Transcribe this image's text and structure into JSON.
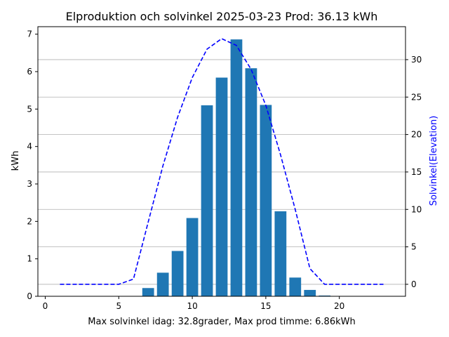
{
  "chart_data": {
    "type": "bar",
    "title": "Elproduktion och solvinkel 2025-03-23 Prod: 36.13 kWh",
    "xlabel": "Max solvinkel idag: 32.8grader, Max prod timme: 6.86kWh",
    "ylabel": "kWh",
    "y2label": "Solvinkel(Elevation)",
    "xlim": [
      -0.5,
      24.5
    ],
    "ylim": [
      0,
      7.2
    ],
    "y2lim": [
      -1.6,
      34.4
    ],
    "xticks": [
      0,
      5,
      10,
      15,
      20
    ],
    "yticks": [
      0,
      1,
      2,
      3,
      4,
      5,
      6,
      7
    ],
    "y2ticks": [
      0,
      5,
      10,
      15,
      20,
      25,
      30
    ],
    "grid": "horizontal lines at right-axis ticks",
    "colors": {
      "bars": "#1f77b4",
      "line": "#0000ff",
      "grid": "#b0b0b0",
      "y2label": "#0000ff"
    },
    "series": [
      {
        "type": "bar",
        "axis": "left",
        "x": [
          7,
          8,
          9,
          10,
          11,
          12,
          13,
          14,
          15,
          16,
          17,
          18,
          19
        ],
        "values": [
          0.22,
          0.63,
          1.21,
          2.09,
          5.1,
          5.84,
          6.86,
          6.09,
          5.11,
          2.27,
          0.5,
          0.17,
          0.02
        ]
      },
      {
        "type": "line",
        "axis": "right",
        "style": "dashed",
        "x": [
          1,
          2,
          3,
          4,
          5,
          6,
          7,
          8,
          9,
          10,
          11,
          12,
          13,
          14,
          15,
          16,
          17,
          18,
          19,
          20,
          21,
          22,
          23
        ],
        "values": [
          0,
          0,
          0,
          0,
          0,
          0.7,
          8.3,
          15.8,
          22.3,
          27.6,
          31.4,
          32.8,
          31.9,
          28.7,
          23.9,
          17.3,
          10.0,
          2.1,
          0,
          0,
          0,
          0,
          0
        ]
      }
    ]
  }
}
